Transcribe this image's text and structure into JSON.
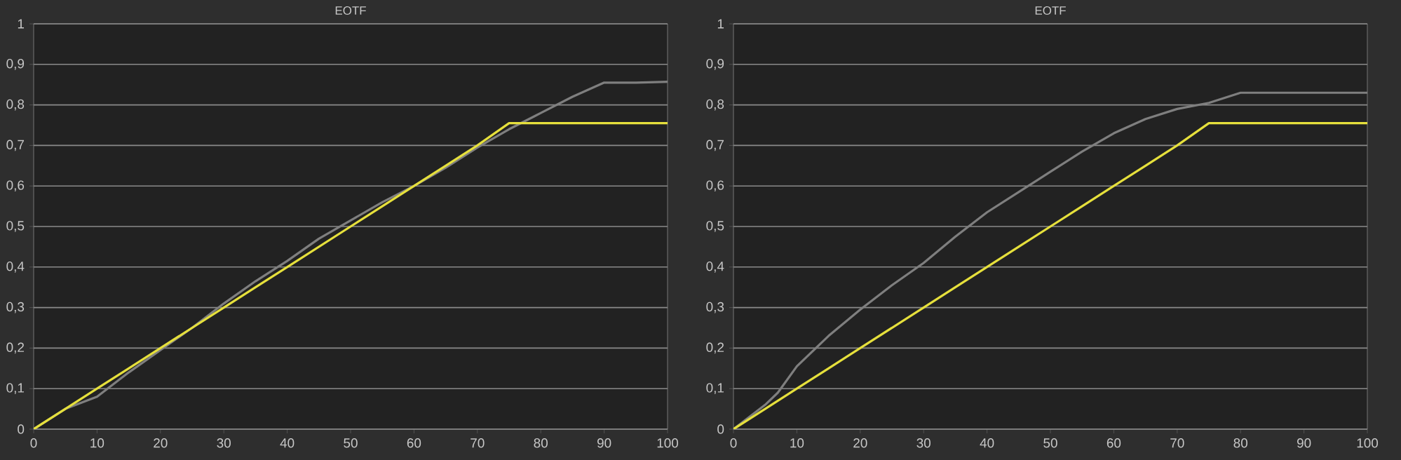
{
  "chart_data": [
    {
      "type": "line",
      "title": "EOTF",
      "xlim": [
        0,
        100
      ],
      "ylim": [
        0,
        1
      ],
      "xticks": [
        0,
        10,
        20,
        30,
        40,
        50,
        60,
        70,
        80,
        90,
        100
      ],
      "yticks": [
        0,
        {
          "value": 0.1,
          "label": "0,1"
        },
        {
          "value": 0.2,
          "label": "0,2"
        },
        {
          "value": 0.3,
          "label": "0,3"
        },
        {
          "value": 0.4,
          "label": "0,4"
        },
        {
          "value": 0.5,
          "label": "0,5"
        },
        {
          "value": 0.6,
          "label": "0,6"
        },
        {
          "value": 0.7,
          "label": "0,7"
        },
        {
          "value": 0.8,
          "label": "0,8"
        },
        {
          "value": 0.9,
          "label": "0,9"
        },
        1
      ],
      "grid": "y",
      "marker": "none",
      "line_style": "solid",
      "series": [
        {
          "color": "#7f7f7f",
          "x": [
            0,
            5,
            10,
            15,
            20,
            25,
            30,
            35,
            40,
            45,
            50,
            55,
            60,
            65,
            70,
            75,
            80,
            85,
            90,
            95,
            100
          ],
          "values": [
            0,
            0.05,
            0.08,
            0.14,
            0.195,
            0.25,
            0.31,
            0.365,
            0.415,
            0.47,
            0.515,
            0.56,
            0.6,
            0.645,
            0.695,
            0.74,
            0.78,
            0.82,
            0.855,
            0.855,
            0.857
          ]
        },
        {
          "color": "#e6e03c",
          "x": [
            0,
            5,
            10,
            15,
            20,
            25,
            30,
            35,
            40,
            45,
            50,
            55,
            60,
            65,
            70,
            75,
            80,
            85,
            90,
            95,
            100
          ],
          "values": [
            0,
            0.05,
            0.1,
            0.15,
            0.2,
            0.25,
            0.3,
            0.35,
            0.4,
            0.45,
            0.5,
            0.55,
            0.6,
            0.65,
            0.7,
            0.755,
            0.755,
            0.755,
            0.755,
            0.755,
            0.755
          ]
        }
      ]
    },
    {
      "type": "line",
      "title": "EOTF",
      "xlim": [
        0,
        100
      ],
      "ylim": [
        0,
        1
      ],
      "xticks": [
        0,
        10,
        20,
        30,
        40,
        50,
        60,
        70,
        80,
        90,
        100
      ],
      "yticks": [
        0,
        {
          "value": 0.1,
          "label": "0,1"
        },
        {
          "value": 0.2,
          "label": "0,2"
        },
        {
          "value": 0.3,
          "label": "0,3"
        },
        {
          "value": 0.4,
          "label": "0,4"
        },
        {
          "value": 0.5,
          "label": "0,5"
        },
        {
          "value": 0.6,
          "label": "0,6"
        },
        {
          "value": 0.7,
          "label": "0,7"
        },
        {
          "value": 0.8,
          "label": "0,8"
        },
        {
          "value": 0.9,
          "label": "0,9"
        },
        1
      ],
      "grid": "y",
      "marker": "none",
      "line_style": "solid",
      "series": [
        {
          "color": "#7f7f7f",
          "x": [
            0,
            5,
            7,
            10,
            15,
            20,
            25,
            30,
            35,
            40,
            45,
            50,
            55,
            60,
            65,
            70,
            75,
            80,
            90,
            100
          ],
          "values": [
            0,
            0.06,
            0.09,
            0.155,
            0.23,
            0.295,
            0.355,
            0.41,
            0.475,
            0.535,
            0.585,
            0.635,
            0.685,
            0.73,
            0.765,
            0.79,
            0.805,
            0.83,
            0.83,
            0.83
          ]
        },
        {
          "color": "#e6e03c",
          "x": [
            0,
            5,
            10,
            15,
            20,
            25,
            30,
            35,
            40,
            45,
            50,
            55,
            60,
            65,
            70,
            75,
            80,
            85,
            90,
            95,
            100
          ],
          "values": [
            0,
            0.05,
            0.1,
            0.15,
            0.2,
            0.25,
            0.3,
            0.35,
            0.4,
            0.45,
            0.5,
            0.55,
            0.6,
            0.65,
            0.7,
            0.755,
            0.755,
            0.755,
            0.755,
            0.755,
            0.755
          ]
        }
      ]
    }
  ]
}
